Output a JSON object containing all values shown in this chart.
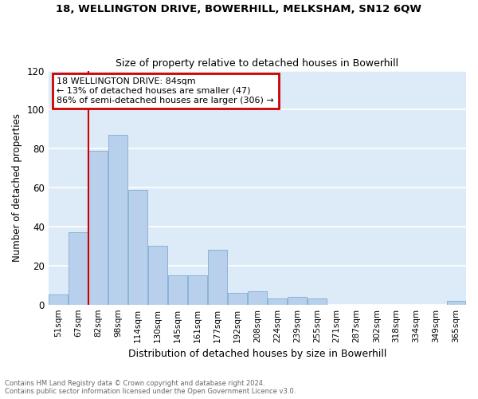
{
  "title1": "18, WELLINGTON DRIVE, BOWERHILL, MELKSHAM, SN12 6QW",
  "title2": "Size of property relative to detached houses in Bowerhill",
  "xlabel": "Distribution of detached houses by size in Bowerhill",
  "ylabel": "Number of detached properties",
  "footnote1": "Contains HM Land Registry data © Crown copyright and database right 2024.",
  "footnote2": "Contains public sector information licensed under the Open Government Licence v3.0.",
  "categories": [
    "51sqm",
    "67sqm",
    "82sqm",
    "98sqm",
    "114sqm",
    "130sqm",
    "145sqm",
    "161sqm",
    "177sqm",
    "192sqm",
    "208sqm",
    "224sqm",
    "239sqm",
    "255sqm",
    "271sqm",
    "287sqm",
    "302sqm",
    "318sqm",
    "334sqm",
    "349sqm",
    "365sqm"
  ],
  "values": [
    5,
    37,
    79,
    87,
    59,
    30,
    15,
    15,
    28,
    6,
    7,
    3,
    4,
    3,
    0,
    0,
    0,
    0,
    0,
    0,
    2
  ],
  "bar_color": "#b8d0eb",
  "bar_edge_color": "#8ab4d8",
  "background_color": "#ddeaf7",
  "grid_color": "#ffffff",
  "red_line_index": 2,
  "annotation_line1": "18 WELLINGTON DRIVE: 84sqm",
  "annotation_line2": "← 13% of detached houses are smaller (47)",
  "annotation_line3": "86% of semi-detached houses are larger (306) →",
  "annotation_box_color": "#ffffff",
  "annotation_box_edge": "#cc0000",
  "ylim": [
    0,
    120
  ],
  "yticks": [
    0,
    20,
    40,
    60,
    80,
    100,
    120
  ]
}
